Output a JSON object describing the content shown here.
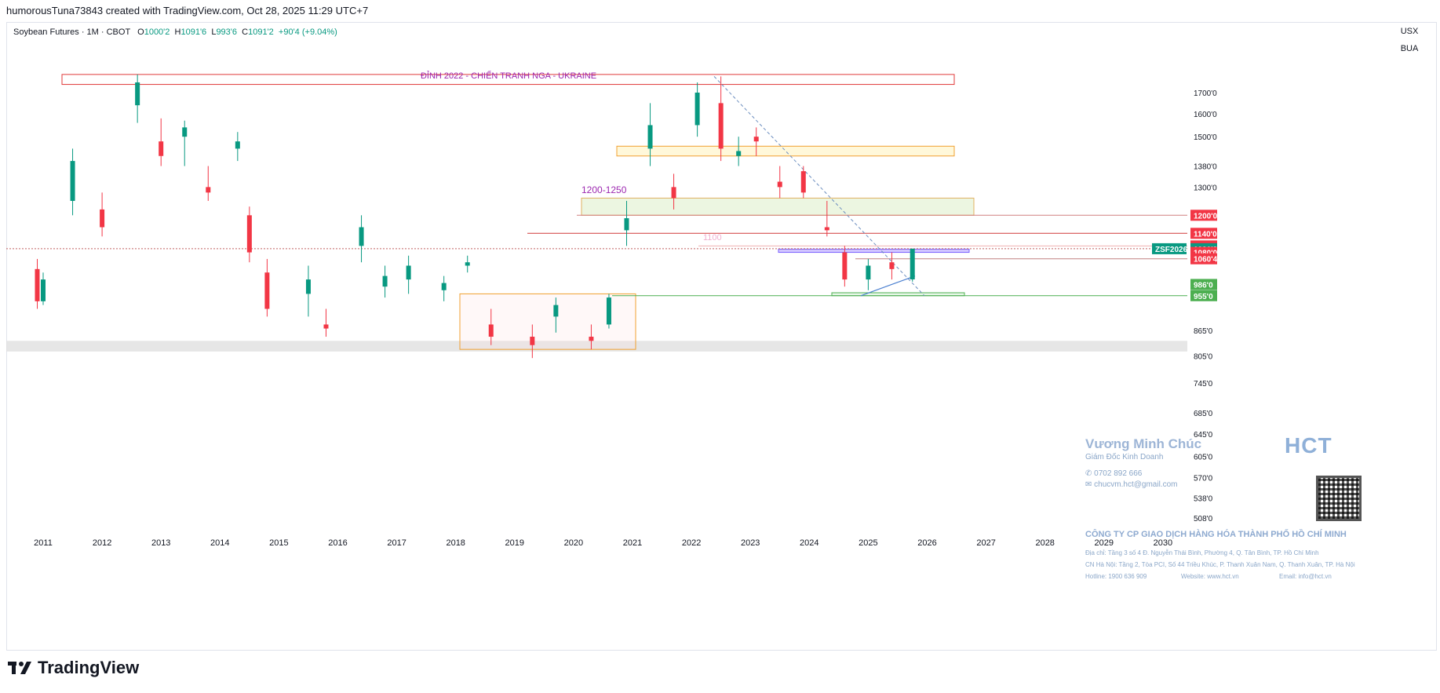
{
  "header": {
    "text": "humorousTuna73843 created with TradingView.com, Oct 28, 2025 11:29 UTC+7"
  },
  "legend": {
    "symbol": "Soybean Futures · 1M · CBOT",
    "o_label": "O",
    "o": "1000'2",
    "h_label": "H",
    "h": "1091'6",
    "l_label": "L",
    "l": "993'6",
    "c_label": "C",
    "c": "1091'2",
    "change": "+90'4 (+9.04%)"
  },
  "units": {
    "currency": "USX",
    "unit": "BUA"
  },
  "footer": {
    "brand": "TradingView"
  },
  "colors": {
    "up": "#089981",
    "down": "#f23645",
    "accent_purple": "#9c27b0"
  },
  "annotations": {
    "top_box": "ĐỈNH 2022 - CHIẾN TRANH NGA - UKRAINE",
    "zone_label": "1200-1250",
    "faint_label": "1100"
  },
  "card": {
    "name": "Vương Minh Chúc",
    "role": "Giám Đốc Kinh Doanh",
    "phone": "0702 892 666",
    "email": "chucvm.hct@gmail.com",
    "logo": "HCT",
    "company": "CÔNG TY CP GIAO DỊCH HÀNG HÓA THÀNH PHỐ HỒ CHÍ MINH",
    "addr1": "Địa chỉ: Tầng 3 số 4 Đ. Nguyễn Thái Bình, Phường 4, Q. Tân Bình, TP. Hồ Chí Minh",
    "addr2": "CN Hà Nội: Tầng 2, Tòa PCI, Số 44 Triều Khúc, P. Thanh Xuân Nam, Q. Thanh Xuân, TP. Hà Nội",
    "hotline": "Hotline: 1900 636 909",
    "website": "Website: www.hct.vn",
    "mail": "Email: info@hct.vn"
  },
  "chart_data": {
    "type": "candlestick",
    "title": "Soybean Futures · 1M · CBOT",
    "x_ticks": [
      "2011",
      "2012",
      "2013",
      "2014",
      "2015",
      "2016",
      "2017",
      "2018",
      "2019",
      "2020",
      "2021",
      "2022",
      "2023",
      "2024",
      "2025",
      "2026",
      "2027",
      "2028",
      "2029",
      "2030"
    ],
    "y_ticks": [
      "1700'0",
      "1600'0",
      "1500'0",
      "1380'0",
      "1300'0",
      "865'0",
      "805'0",
      "745'0",
      "685'0",
      "645'0",
      "605'0",
      "570'0",
      "538'0",
      "508'0"
    ],
    "y_scale": "log",
    "price_labels": [
      {
        "text": "1200'0",
        "value": 1200,
        "color": "#f23645"
      },
      {
        "text": "1140'0",
        "value": 1140,
        "color": "#f23645"
      },
      {
        "text": "1100'0",
        "value": 1100,
        "color": "#f23645"
      },
      {
        "text": "1091'2",
        "value": 1091.25,
        "color": "#089981"
      },
      {
        "text": "3d 15h",
        "value": 1072,
        "color": "#089981"
      },
      {
        "text": "1080'0",
        "value": 1080,
        "color": "#f23645"
      },
      {
        "text": "1060'4",
        "value": 1060.5,
        "color": "#f23645"
      },
      {
        "text": "986'0",
        "value": 986,
        "color": "#4caf50"
      },
      {
        "text": "955'0",
        "value": 955,
        "color": "#4caf50"
      }
    ],
    "symbol_tag": "ZSF2026",
    "last_price": 1091.25,
    "grid": false,
    "series": [
      {
        "year": 2010.9,
        "o": 1030,
        "h": 1060,
        "l": 920,
        "c": 940
      },
      {
        "year": 2011.0,
        "o": 940,
        "h": 1020,
        "l": 930,
        "c": 1000
      },
      {
        "year": 2011.5,
        "o": 1250,
        "h": 1450,
        "l": 1200,
        "c": 1400
      },
      {
        "year": 2012.0,
        "o": 1220,
        "h": 1280,
        "l": 1130,
        "c": 1160
      },
      {
        "year": 2012.6,
        "o": 1640,
        "h": 1790,
        "l": 1560,
        "c": 1750
      },
      {
        "year": 2013.0,
        "o": 1480,
        "h": 1580,
        "l": 1380,
        "c": 1420
      },
      {
        "year": 2013.4,
        "o": 1500,
        "h": 1570,
        "l": 1380,
        "c": 1540
      },
      {
        "year": 2013.8,
        "o": 1300,
        "h": 1380,
        "l": 1250,
        "c": 1280
      },
      {
        "year": 2014.3,
        "o": 1450,
        "h": 1520,
        "l": 1400,
        "c": 1480
      },
      {
        "year": 2014.5,
        "o": 1200,
        "h": 1230,
        "l": 1050,
        "c": 1080
      },
      {
        "year": 2014.8,
        "o": 1020,
        "h": 1060,
        "l": 900,
        "c": 920
      },
      {
        "year": 2015.5,
        "o": 960,
        "h": 1040,
        "l": 900,
        "c": 1000
      },
      {
        "year": 2015.8,
        "o": 880,
        "h": 920,
        "l": 850,
        "c": 870
      },
      {
        "year": 2016.4,
        "o": 1100,
        "h": 1200,
        "l": 1050,
        "c": 1160
      },
      {
        "year": 2016.8,
        "o": 980,
        "h": 1040,
        "l": 950,
        "c": 1010
      },
      {
        "year": 2017.2,
        "o": 1000,
        "h": 1070,
        "l": 960,
        "c": 1040
      },
      {
        "year": 2017.8,
        "o": 970,
        "h": 1010,
        "l": 940,
        "c": 990
      },
      {
        "year": 2018.2,
        "o": 1040,
        "h": 1070,
        "l": 1020,
        "c": 1050
      },
      {
        "year": 2018.6,
        "o": 880,
        "h": 920,
        "l": 830,
        "c": 850
      },
      {
        "year": 2019.3,
        "o": 850,
        "h": 880,
        "l": 800,
        "c": 830
      },
      {
        "year": 2019.7,
        "o": 900,
        "h": 950,
        "l": 860,
        "c": 930
      },
      {
        "year": 2020.3,
        "o": 850,
        "h": 880,
        "l": 820,
        "c": 840
      },
      {
        "year": 2020.6,
        "o": 880,
        "h": 960,
        "l": 870,
        "c": 950
      },
      {
        "year": 2020.9,
        "o": 1150,
        "h": 1250,
        "l": 1100,
        "c": 1190
      },
      {
        "year": 2021.3,
        "o": 1450,
        "h": 1650,
        "l": 1380,
        "c": 1550
      },
      {
        "year": 2021.7,
        "o": 1300,
        "h": 1350,
        "l": 1220,
        "c": 1260
      },
      {
        "year": 2022.1,
        "o": 1550,
        "h": 1750,
        "l": 1500,
        "c": 1700
      },
      {
        "year": 2022.5,
        "o": 1650,
        "h": 1780,
        "l": 1400,
        "c": 1450
      },
      {
        "year": 2022.8,
        "o": 1420,
        "h": 1500,
        "l": 1380,
        "c": 1440
      },
      {
        "year": 2023.1,
        "o": 1500,
        "h": 1540,
        "l": 1420,
        "c": 1480
      },
      {
        "year": 2023.5,
        "o": 1320,
        "h": 1380,
        "l": 1260,
        "c": 1300
      },
      {
        "year": 2023.9,
        "o": 1360,
        "h": 1380,
        "l": 1260,
        "c": 1280
      },
      {
        "year": 2024.3,
        "o": 1160,
        "h": 1250,
        "l": 1130,
        "c": 1150
      },
      {
        "year": 2024.6,
        "o": 1080,
        "h": 1100,
        "l": 980,
        "c": 1000
      },
      {
        "year": 2025.0,
        "o": 1000,
        "h": 1060,
        "l": 970,
        "c": 1040
      },
      {
        "year": 2025.4,
        "o": 1050,
        "h": 1080,
        "l": 1000,
        "c": 1030
      },
      {
        "year": 2025.75,
        "o": 1000.25,
        "h": 1091.75,
        "l": 993.75,
        "c": 1091.25
      }
    ]
  }
}
